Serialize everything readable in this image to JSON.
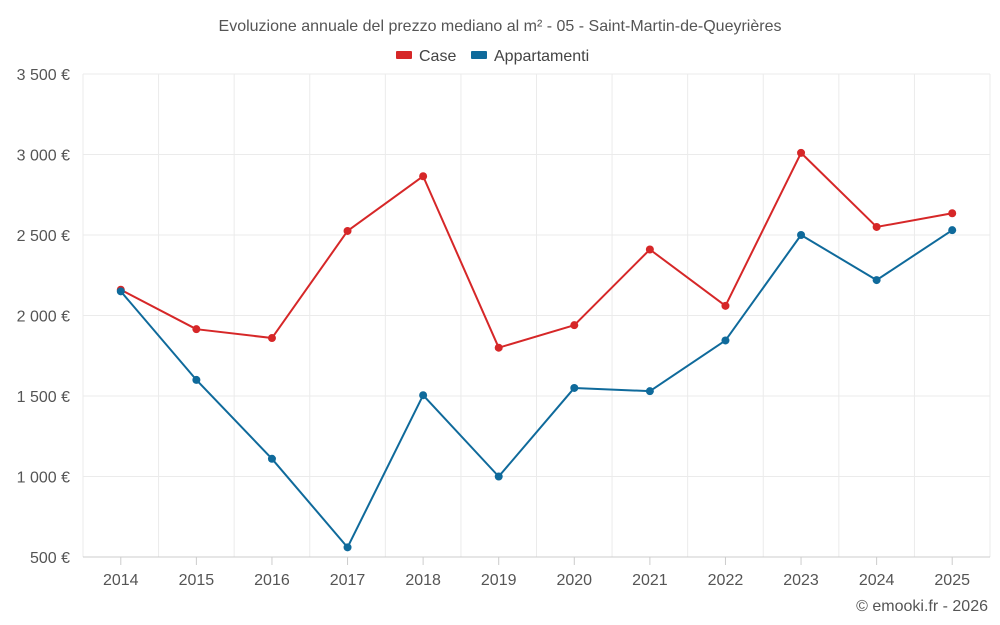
{
  "chart_data": {
    "type": "line",
    "title": "Evoluzione annuale del prezzo mediano al m² - 05 - Saint-Martin-de-Queyrières",
    "xlabel": "",
    "ylabel": "",
    "categories": [
      "2014",
      "2015",
      "2016",
      "2017",
      "2018",
      "2019",
      "2020",
      "2021",
      "2022",
      "2023",
      "2024",
      "2025"
    ],
    "series": [
      {
        "name": "Case",
        "color": "#d62728",
        "values": [
          2160,
          1915,
          1860,
          2525,
          2865,
          1800,
          1940,
          2410,
          2060,
          3010,
          2550,
          2635
        ]
      },
      {
        "name": "Appartamenti",
        "color": "#0f6a9b",
        "values": [
          2150,
          1600,
          1110,
          560,
          1505,
          1000,
          1550,
          1530,
          1845,
          2500,
          2220,
          2530
        ]
      }
    ],
    "ylim": [
      500,
      3500
    ],
    "yticks": [
      500,
      1000,
      1500,
      2000,
      2500,
      3000,
      3500
    ],
    "ytick_labels": [
      "500 €",
      "1 000 €",
      "1 500 €",
      "2 000 €",
      "2 500 €",
      "3 000 €",
      "3 500 €"
    ],
    "grid": true,
    "legend_position": "top-center"
  },
  "credit": "© emooki.fr - 2026"
}
